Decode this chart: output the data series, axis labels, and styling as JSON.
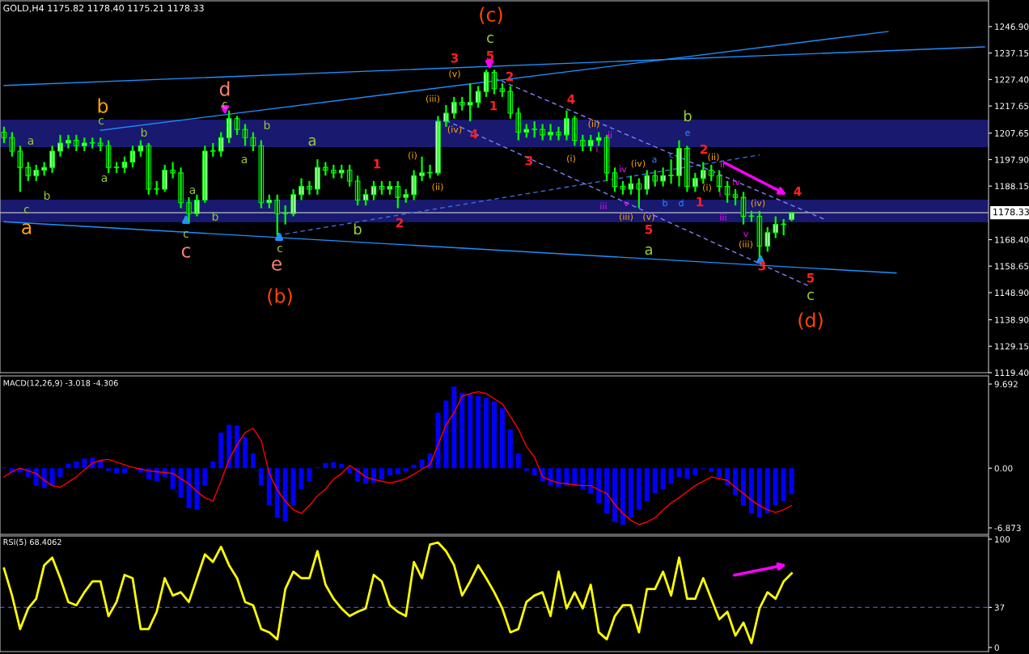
{
  "chart_data": [
    {
      "type": "candlestick",
      "title": "GOLD,H4 1175.82 1178.40 1175.21 1178.33",
      "categories": [
        null,
        null,
        null,
        null,
        null,
        null,
        null,
        null,
        null,
        null,
        null,
        null,
        null,
        null,
        null,
        null,
        null,
        null,
        null,
        null,
        null,
        null,
        null,
        null,
        null,
        null,
        null,
        null,
        null,
        null,
        null,
        null,
        null,
        null,
        null,
        null,
        null,
        null,
        null,
        null,
        null,
        null,
        null,
        null,
        null,
        null,
        null,
        null,
        null,
        null,
        null,
        null,
        null,
        null,
        null,
        null,
        null,
        null,
        null,
        null,
        null,
        null,
        null,
        null,
        null,
        null,
        null,
        null,
        null,
        null,
        null,
        null,
        null,
        null,
        null,
        null,
        null,
        null,
        null,
        null,
        null,
        null,
        null,
        null,
        null,
        null,
        null,
        null,
        null,
        null,
        null,
        null,
        null,
        null,
        null,
        null,
        null,
        null,
        null,
        null,
        null,
        null,
        null,
        null,
        null,
        null,
        null,
        null,
        null,
        null,
        null,
        null,
        null,
        null,
        null,
        null,
        null,
        null,
        null,
        null,
        null,
        null,
        null
      ],
      "ohlc": [
        [
          1208,
          1210,
          1204,
          1206
        ],
        [
          1206,
          1208,
          1199,
          1201
        ],
        [
          1201,
          1203,
          1186,
          1195
        ],
        [
          1195,
          1197,
          1190,
          1192
        ],
        [
          1192,
          1196,
          1190,
          1194
        ],
        [
          1194,
          1197,
          1192,
          1195
        ],
        [
          1195,
          1203,
          1193,
          1201
        ],
        [
          1201,
          1207,
          1199,
          1204
        ],
        [
          1204,
          1207,
          1202,
          1205
        ],
        [
          1205,
          1207,
          1201,
          1203
        ],
        [
          1203,
          1206,
          1201,
          1204
        ],
        [
          1204,
          1206,
          1202,
          1204
        ],
        [
          1204,
          1206,
          1201,
          1203
        ],
        [
          1203,
          1205,
          1193,
          1195
        ],
        [
          1195,
          1197,
          1193,
          1195
        ],
        [
          1195,
          1199,
          1193,
          1197
        ],
        [
          1197,
          1203,
          1195,
          1201
        ],
        [
          1201,
          1205,
          1199,
          1203
        ],
        [
          1203,
          1204,
          1185,
          1187
        ],
        [
          1187,
          1190,
          1185,
          1187
        ],
        [
          1187,
          1196,
          1186,
          1194
        ],
        [
          1194,
          1197,
          1191,
          1193
        ],
        [
          1193,
          1195,
          1180,
          1182
        ],
        [
          1182,
          1184,
          1175,
          1178
        ],
        [
          1178,
          1185,
          1177,
          1183
        ],
        [
          1183,
          1203,
          1182,
          1201
        ],
        [
          1201,
          1204,
          1199,
          1201
        ],
        [
          1201,
          1208,
          1199,
          1206
        ],
        [
          1206,
          1216,
          1204,
          1213
        ],
        [
          1213,
          1214,
          1207,
          1209
        ],
        [
          1209,
          1211,
          1203,
          1206
        ],
        [
          1206,
          1208,
          1201,
          1203
        ],
        [
          1203,
          1205,
          1180,
          1182
        ],
        [
          1182,
          1185,
          1180,
          1183
        ],
        [
          1183,
          1185,
          1170,
          1178
        ],
        [
          1178,
          1181,
          1174,
          1178
        ],
        [
          1178,
          1187,
          1177,
          1185
        ],
        [
          1185,
          1191,
          1183,
          1188
        ],
        [
          1188,
          1190,
          1185,
          1187
        ],
        [
          1187,
          1198,
          1185,
          1195
        ],
        [
          1195,
          1197,
          1192,
          1194
        ],
        [
          1194,
          1196,
          1191,
          1193
        ],
        [
          1193,
          1196,
          1191,
          1194
        ],
        [
          1194,
          1196,
          1188,
          1190
        ],
        [
          1190,
          1192,
          1181,
          1183
        ],
        [
          1183,
          1187,
          1181,
          1185
        ],
        [
          1185,
          1190,
          1183,
          1188
        ],
        [
          1188,
          1190,
          1185,
          1187
        ],
        [
          1187,
          1190,
          1185,
          1188
        ],
        [
          1188,
          1190,
          1180,
          1184
        ],
        [
          1184,
          1187,
          1182,
          1185
        ],
        [
          1185,
          1194,
          1183,
          1192
        ],
        [
          1192,
          1199,
          1190,
          1193
        ],
        [
          1193,
          1196,
          1191,
          1193
        ],
        [
          1193,
          1214,
          1192,
          1212
        ],
        [
          1212,
          1218,
          1210,
          1215
        ],
        [
          1215,
          1221,
          1213,
          1219
        ],
        [
          1219,
          1221,
          1216,
          1218
        ],
        [
          1218,
          1226,
          1212,
          1219
        ],
        [
          1219,
          1225,
          1217,
          1223
        ],
        [
          1223,
          1231,
          1221,
          1230
        ],
        [
          1230,
          1231,
          1222,
          1224
        ],
        [
          1224,
          1226,
          1221,
          1223
        ],
        [
          1223,
          1225,
          1213,
          1215
        ],
        [
          1215,
          1217,
          1205,
          1208
        ],
        [
          1208,
          1211,
          1206,
          1209
        ],
        [
          1209,
          1212,
          1206,
          1209
        ],
        [
          1209,
          1211,
          1205,
          1207
        ],
        [
          1207,
          1211,
          1205,
          1208
        ],
        [
          1208,
          1210,
          1205,
          1207
        ],
        [
          1207,
          1216,
          1205,
          1213
        ],
        [
          1213,
          1214,
          1203,
          1205
        ],
        [
          1205,
          1207,
          1201,
          1203
        ],
        [
          1203,
          1207,
          1201,
          1205
        ],
        [
          1205,
          1208,
          1203,
          1206
        ],
        [
          1206,
          1207,
          1190,
          1193
        ],
        [
          1193,
          1195,
          1186,
          1188
        ],
        [
          1188,
          1190,
          1185,
          1187
        ],
        [
          1187,
          1192,
          1185,
          1189
        ],
        [
          1189,
          1191,
          1180,
          1187
        ],
        [
          1187,
          1194,
          1185,
          1192
        ],
        [
          1192,
          1194,
          1188,
          1190
        ],
        [
          1190,
          1195,
          1188,
          1192
        ],
        [
          1192,
          1198,
          1189,
          1192
        ],
        [
          1192,
          1205,
          1188,
          1202
        ],
        [
          1202,
          1203,
          1186,
          1188
        ],
        [
          1188,
          1193,
          1186,
          1191
        ],
        [
          1191,
          1197,
          1189,
          1194
        ],
        [
          1194,
          1196,
          1190,
          1192
        ],
        [
          1192,
          1194,
          1186,
          1188
        ],
        [
          1188,
          1190,
          1182,
          1185
        ],
        [
          1185,
          1187,
          1181,
          1184
        ],
        [
          1184,
          1186,
          1174,
          1177
        ],
        [
          1177,
          1179,
          1175,
          1177
        ],
        [
          1177,
          1179,
          1162,
          1166
        ],
        [
          1166,
          1173,
          1164,
          1171
        ],
        [
          1171,
          1177,
          1169,
          1174
        ],
        [
          1174,
          1176,
          1170,
          1174
        ],
        [
          1175.82,
          1178.4,
          1175.21,
          1178.33
        ],
        null,
        null,
        null,
        null,
        null,
        null,
        null,
        null,
        null,
        null,
        null,
        null,
        null,
        null,
        null,
        null,
        null,
        null,
        null,
        null,
        null,
        null,
        null,
        null
      ],
      "series": [
        {
          "type": "line",
          "color": "#1e90ff",
          "line_style": "solid",
          "values": [
            1225.2,
            null,
            null,
            null,
            null,
            null,
            null,
            null,
            null,
            null,
            null,
            null,
            null,
            null,
            null,
            null,
            null,
            null,
            null,
            null,
            null,
            null,
            null,
            null,
            null,
            null,
            null,
            null,
            null,
            null,
            null,
            null,
            null,
            null,
            null,
            null,
            null,
            null,
            null,
            null,
            null,
            null,
            null,
            null,
            null,
            null,
            null,
            null,
            null,
            null,
            null,
            null,
            null,
            null,
            null,
            null,
            null,
            null,
            null,
            null,
            null,
            null,
            null,
            null,
            null,
            null,
            null,
            null,
            null,
            null,
            null,
            null,
            null,
            null,
            null,
            null,
            null,
            null,
            null,
            null,
            null,
            null,
            null,
            null,
            null,
            null,
            null,
            null,
            null,
            null,
            null,
            null,
            null,
            null,
            null,
            null,
            null,
            null,
            null,
            null,
            null,
            null,
            null,
            null,
            null,
            null,
            null,
            null,
            null,
            null,
            null,
            null,
            null,
            null,
            null,
            null,
            null,
            null,
            null,
            null,
            null,
            null,
            1239.4
          ]
        },
        {
          "type": "line",
          "color": "#1e90ff",
          "line_style": "solid",
          "values": [
            null,
            null,
            null,
            null,
            null,
            null,
            null,
            null,
            null,
            null,
            null,
            null,
            1208.7,
            null,
            null,
            null,
            null,
            null,
            null,
            null,
            null,
            null,
            null,
            null,
            null,
            null,
            null,
            null,
            null,
            null,
            null,
            null,
            null,
            null,
            null,
            null,
            null,
            null,
            null,
            null,
            null,
            null,
            null,
            null,
            null,
            null,
            null,
            null,
            null,
            null,
            null,
            null,
            null,
            null,
            null,
            null,
            null,
            null,
            null,
            null,
            null,
            null,
            null,
            null,
            null,
            null,
            null,
            null,
            null,
            null,
            null,
            null,
            null,
            null,
            null,
            null,
            null,
            null,
            null,
            null,
            null,
            null,
            null,
            null,
            null,
            null,
            null,
            null,
            null,
            null,
            null,
            null,
            null,
            null,
            null,
            null,
            null,
            null,
            null,
            null,
            null,
            null,
            null,
            null,
            null,
            null,
            null,
            null,
            null,
            null,
            1245.1,
            null,
            null,
            null,
            null,
            null,
            null,
            null,
            null,
            null,
            null,
            null,
            null
          ]
        },
        {
          "type": "line",
          "color": "#1e90ff",
          "line_style": "solid",
          "values": [
            1175.0,
            null,
            null,
            null,
            null,
            null,
            null,
            null,
            null,
            null,
            null,
            null,
            null,
            null,
            null,
            null,
            null,
            null,
            null,
            null,
            null,
            null,
            null,
            null,
            null,
            null,
            null,
            null,
            null,
            null,
            null,
            null,
            null,
            null,
            null,
            null,
            null,
            null,
            null,
            null,
            null,
            null,
            null,
            null,
            null,
            null,
            null,
            null,
            null,
            null,
            null,
            null,
            null,
            null,
            null,
            null,
            null,
            null,
            null,
            null,
            null,
            null,
            null,
            null,
            null,
            null,
            null,
            null,
            null,
            null,
            null,
            null,
            null,
            null,
            null,
            null,
            null,
            null,
            null,
            null,
            null,
            null,
            null,
            null,
            null,
            null,
            null,
            null,
            null,
            null,
            null,
            null,
            null,
            null,
            null,
            null,
            null,
            null,
            null,
            null,
            null,
            null,
            null,
            null,
            null,
            null,
            null,
            null,
            null,
            null,
            null,
            1156.1,
            null,
            null,
            null,
            null,
            null,
            null,
            null,
            null,
            null,
            null,
            null
          ]
        },
        {
          "type": "line",
          "color": "#4169e1",
          "line_style": "dashed",
          "values": [
            null,
            null,
            null,
            null,
            null,
            null,
            null,
            null,
            null,
            null,
            null,
            null,
            null,
            null,
            null,
            null,
            null,
            null,
            null,
            null,
            null,
            null,
            null,
            null,
            null,
            null,
            null,
            null,
            null,
            null,
            null,
            null,
            null,
            null,
            1170.0,
            null,
            null,
            null,
            null,
            null,
            null,
            null,
            null,
            null,
            null,
            null,
            null,
            null,
            null,
            null,
            null,
            null,
            null,
            null,
            null,
            null,
            null,
            null,
            null,
            null,
            null,
            null,
            null,
            null,
            null,
            null,
            null,
            null,
            null,
            null,
            null,
            null,
            null,
            null,
            null,
            null,
            null,
            null,
            null,
            null,
            null,
            null,
            null,
            null,
            null,
            null,
            null,
            null,
            null,
            null,
            null,
            null,
            null,
            null,
            1199.6,
            null,
            null,
            null,
            null,
            null,
            null,
            null,
            null,
            null,
            null,
            null,
            null,
            null,
            null,
            null,
            null,
            null,
            null,
            null,
            null,
            null,
            null,
            null,
            null,
            null,
            null,
            null,
            null
          ]
        },
        {
          "type": "line",
          "color": "#8080ff",
          "line_style": "dashed",
          "values": [
            null,
            null,
            null,
            null,
            null,
            null,
            null,
            null,
            null,
            null,
            null,
            null,
            null,
            null,
            null,
            null,
            null,
            null,
            null,
            null,
            null,
            null,
            null,
            null,
            null,
            null,
            null,
            null,
            null,
            null,
            null,
            null,
            null,
            null,
            null,
            null,
            null,
            null,
            null,
            null,
            null,
            null,
            null,
            null,
            null,
            null,
            null,
            null,
            null,
            null,
            null,
            null,
            null,
            null,
            null,
            null,
            null,
            null,
            null,
            null,
            null,
            1228.0,
            null,
            null,
            null,
            null,
            null,
            null,
            null,
            null,
            null,
            null,
            null,
            null,
            null,
            null,
            null,
            null,
            null,
            null,
            null,
            null,
            null,
            null,
            null,
            null,
            null,
            null,
            null,
            null,
            null,
            null,
            null,
            null,
            null,
            null,
            null,
            null,
            null,
            null,
            null,
            null,
            1176.0,
            null,
            null,
            null,
            null,
            null,
            null,
            null,
            null,
            null,
            null,
            null,
            null,
            null,
            null,
            null,
            null,
            null,
            null,
            null,
            null
          ]
        },
        {
          "type": "line",
          "color": "#8080ff",
          "line_style": "dashed",
          "values": [
            null,
            null,
            null,
            null,
            null,
            null,
            null,
            null,
            null,
            null,
            null,
            null,
            null,
            null,
            null,
            null,
            null,
            null,
            null,
            null,
            null,
            null,
            null,
            null,
            null,
            null,
            null,
            null,
            null,
            null,
            null,
            null,
            null,
            null,
            null,
            null,
            null,
            null,
            null,
            null,
            null,
            null,
            null,
            null,
            null,
            null,
            null,
            null,
            null,
            null,
            null,
            null,
            null,
            null,
            null,
            1212.3,
            null,
            null,
            null,
            null,
            null,
            null,
            null,
            null,
            null,
            null,
            null,
            null,
            null,
            null,
            null,
            null,
            null,
            null,
            null,
            null,
            null,
            null,
            null,
            null,
            null,
            null,
            null,
            null,
            null,
            null,
            null,
            null,
            null,
            null,
            null,
            null,
            null,
            null,
            null,
            null,
            null,
            null,
            null,
            null,
            1151.5,
            null,
            null,
            null,
            null,
            null,
            null,
            null,
            null,
            null,
            null,
            null,
            null,
            null,
            null,
            null,
            null,
            null,
            null,
            null,
            null,
            null,
            null
          ]
        }
      ],
      "bands": [
        {
          "axis": "y",
          "from": 1202.5,
          "to": 1212.6,
          "color": "#191970"
        },
        {
          "axis": "y",
          "from": 1174.8,
          "to": 1183.1,
          "color": "#191970"
        }
      ],
      "ref_lines": [
        {
          "axis": "y",
          "value": 1178.33,
          "label": "1178.33",
          "color": "#c0c0c0"
        }
      ],
      "ylim": [
        1119.4,
        1256.4
      ],
      "yticks": [
        {
          "value": 1246.9,
          "label": "1246.90"
        },
        {
          "value": 1237.15,
          "label": "1237.15"
        },
        {
          "value": 1227.4,
          "label": "1227.40"
        },
        {
          "value": 1217.65,
          "label": "1217.65"
        },
        {
          "value": 1207.65,
          "label": "1207.65"
        },
        {
          "value": 1197.9,
          "label": "1197.90"
        },
        {
          "value": 1188.15,
          "label": "1188.15"
        },
        {
          "value": 1168.4,
          "label": "1168.40"
        },
        {
          "value": 1158.65,
          "label": "1158.65"
        },
        {
          "value": 1148.9,
          "label": "1148.90"
        },
        {
          "value": 1138.9,
          "label": "1138.90"
        },
        {
          "value": 1129.15,
          "label": "1129.15"
        },
        {
          "value": 1119.4,
          "label": "1119.40"
        }
      ],
      "tick_labels": "y",
      "annotations": [
        "a",
        "c",
        "b",
        "a",
        "b",
        "c",
        "a",
        "b",
        "a",
        "b",
        "c",
        "c",
        "d",
        "c",
        "b",
        "a",
        "c",
        "e",
        "(b)",
        "a",
        "b",
        "1",
        "2",
        "(i)",
        "(ii)",
        "(iii)",
        "(iv)",
        "(v)",
        "3",
        "4",
        "(c)",
        "c",
        "5",
        "2",
        "1",
        "3",
        "4",
        "(ii)",
        "ii",
        "i",
        "(i)",
        "iv",
        "(iv)",
        "a",
        "c",
        "iii",
        "v",
        "(iii)",
        "(v)",
        "5",
        "a",
        "b",
        "d",
        "b",
        "e",
        "2",
        "(ii)",
        "(i)",
        "1",
        "ii",
        "i",
        "iv",
        "iii",
        "v",
        "(iv)",
        "(iii)",
        "3",
        "4",
        "5",
        "c",
        "(d)"
      ]
    },
    {
      "type": "bar",
      "title": "MACD(12,26,9) -3.018 -4.306",
      "categories": [
        null,
        null,
        null,
        null,
        null,
        null,
        null,
        null,
        null,
        null,
        null,
        null,
        null,
        null,
        null,
        null,
        null,
        null,
        null,
        null,
        null,
        null,
        null,
        null,
        null,
        null,
        null,
        null,
        null,
        null,
        null,
        null,
        null,
        null,
        null,
        null,
        null,
        null,
        null,
        null,
        null,
        null,
        null,
        null,
        null,
        null,
        null,
        null,
        null,
        null,
        null,
        null,
        null,
        null,
        null,
        null,
        null,
        null,
        null,
        null,
        null,
        null,
        null,
        null,
        null,
        null,
        null,
        null,
        null,
        null,
        null,
        null,
        null,
        null,
        null,
        null,
        null,
        null,
        null,
        null,
        null,
        null,
        null,
        null,
        null,
        null,
        null,
        null,
        null,
        null,
        null,
        null,
        null,
        null,
        null,
        null,
        null,
        null,
        null,
        null,
        null,
        null,
        null,
        null,
        null,
        null,
        null,
        null,
        null,
        null,
        null,
        null,
        null,
        null,
        null,
        null,
        null,
        null,
        null,
        null,
        null,
        null,
        null
      ],
      "series": [
        {
          "type": "bar",
          "color": "#0000ff",
          "values": [
            0.1,
            -0.5,
            -0.5,
            -1.0,
            -2.0,
            -2.3,
            -2.0,
            -1.0,
            0.5,
            0.8,
            1.1,
            1.2,
            0.9,
            -0.3,
            -0.6,
            -0.6,
            null,
            -0.5,
            -1.3,
            -1.5,
            -1.0,
            -2.4,
            -3.4,
            -4.6,
            -4.8,
            -2.0,
            0.8,
            4.1,
            5.0,
            4.9,
            3.6,
            1.7,
            -2.0,
            -4.3,
            -5.7,
            -6.1,
            -4.3,
            -2.4,
            -1.5,
            0.1,
            0.6,
            0.7,
            0.5,
            -0.6,
            -1.5,
            -1.8,
            -1.7,
            -1.3,
            -0.8,
            -0.7,
            -0.4,
            0.4,
            1.0,
            1.7,
            6.4,
            7.8,
            9.4,
            8.7,
            8.5,
            8.3,
            8.1,
            7.7,
            6.9,
            4.5,
            1.7,
            -0.3,
            -0.8,
            -1.5,
            -2.0,
            -2.2,
            -2.0,
            -2.0,
            -2.4,
            -2.9,
            -4.0,
            -5.2,
            -6.2,
            -6.5,
            -5.7,
            -4.8,
            -3.8,
            -2.9,
            -2.4,
            -1.8,
            -1.0,
            -1.2,
            -0.8,
            -0.1,
            -0.4,
            -1.0,
            -2.0,
            -3.1,
            -4.3,
            -5.2,
            -5.7,
            -5.2,
            -4.3,
            -3.8,
            -3.0,
            null,
            null,
            null,
            null,
            null,
            null,
            null,
            null,
            null,
            null,
            null,
            null,
            null,
            null,
            null,
            null,
            null,
            null,
            null,
            null,
            null,
            null,
            null,
            null
          ]
        },
        {
          "type": "line",
          "color": "#ff0000",
          "line_style": "solid",
          "values": [
            -1.0,
            -0.4,
            0,
            -0.3,
            -0.6,
            -1.4,
            -2.0,
            -2.2,
            -1.6,
            -1.0,
            -0.2,
            0.6,
            0.9,
            1.0,
            0.7,
            0.4,
            0.1,
            -0.1,
            -0.3,
            -0.4,
            -0.5,
            -0.6,
            -1.2,
            -1.8,
            -2.7,
            -3.4,
            -3.8,
            -1.5,
            1.0,
            2.7,
            4.1,
            4.6,
            3.2,
            -0.6,
            -2.5,
            -3.8,
            -4.8,
            -5.2,
            -4.3,
            -3.2,
            -2.4,
            -1.3,
            -0.6,
            0.3,
            -0.3,
            -1.0,
            -1.3,
            -1.5,
            -1.7,
            -1.5,
            -1.2,
            -0.7,
            -0.1,
            0.4,
            2.7,
            5.0,
            6.4,
            8.3,
            8.6,
            8.8,
            8.6,
            8.0,
            7.4,
            6.0,
            4.5,
            2.5,
            1.3,
            -1.0,
            -1.4,
            -1.7,
            -1.8,
            -1.9,
            -2.0,
            -2.0,
            -2.5,
            -2.9,
            -4.2,
            -5.2,
            -6.0,
            -6.5,
            -6.2,
            -5.7,
            -4.8,
            -4.0,
            -3.4,
            -2.7,
            -2.0,
            -1.5,
            -1.0,
            -1.2,
            -1.4,
            -2.2,
            -2.9,
            -3.7,
            -4.3,
            -4.8,
            -5.1,
            -4.8,
            -4.3,
            null,
            null,
            null,
            null,
            null,
            null,
            null,
            null,
            null,
            null,
            null,
            null,
            null,
            null,
            null,
            null,
            null,
            null,
            null,
            null,
            null,
            null,
            null,
            null
          ]
        }
      ],
      "ylim": [
        -7.62,
        10.63
      ],
      "yticks": [
        9.692,
        {
          "value": 0,
          "label": "0.00"
        },
        {
          "value": -6.873,
          "label": "-6.873"
        }
      ],
      "tick_labels": "y"
    },
    {
      "type": "line",
      "title": "RSI(5) 68.4062",
      "categories": [
        null,
        null,
        null,
        null,
        null,
        null,
        null,
        null,
        null,
        null,
        null,
        null,
        null,
        null,
        null,
        null,
        null,
        null,
        null,
        null,
        null,
        null,
        null,
        null,
        null,
        null,
        null,
        null,
        null,
        null,
        null,
        null,
        null,
        null,
        null,
        null,
        null,
        null,
        null,
        null,
        null,
        null,
        null,
        null,
        null,
        null,
        null,
        null,
        null,
        null,
        null,
        null,
        null,
        null,
        null,
        null,
        null,
        null,
        null,
        null,
        null,
        null,
        null,
        null,
        null,
        null,
        null,
        null,
        null,
        null,
        null,
        null,
        null,
        null,
        null,
        null,
        null,
        null,
        null,
        null,
        null,
        null,
        null,
        null,
        null,
        null,
        null,
        null,
        null,
        null,
        null,
        null,
        null,
        null,
        null,
        null,
        null,
        null,
        null,
        null,
        null,
        null,
        null,
        null,
        null,
        null,
        null,
        null,
        null,
        null,
        null,
        null,
        null,
        null,
        null,
        null,
        null,
        null,
        null,
        null,
        null,
        null,
        null
      ],
      "series": [
        {
          "color": "#ffff00",
          "line_style": "solid",
          "values": [
            73,
            48,
            17,
            36,
            45,
            76,
            83,
            64,
            42,
            39,
            51,
            61,
            61,
            29,
            42,
            67,
            64,
            17,
            17,
            33,
            64,
            48,
            51,
            42,
            64,
            86,
            79,
            93,
            76,
            64,
            42,
            39,
            17,
            14,
            7.5,
            54,
            70,
            64,
            64,
            89,
            58,
            45,
            36,
            29,
            33,
            36,
            67,
            61,
            39,
            33,
            29,
            79,
            64,
            95,
            97,
            89,
            76,
            48,
            61,
            76,
            64,
            51,
            36,
            14,
            17,
            42,
            48,
            51,
            29,
            70,
            36,
            51,
            36,
            58,
            14,
            7.5,
            29,
            39,
            39,
            14,
            54,
            54,
            70,
            48,
            83,
            45,
            45,
            64,
            45,
            26,
            33,
            11,
            23,
            4,
            36,
            51,
            45,
            61,
            68.4,
            null,
            null,
            null,
            null,
            null,
            null,
            null,
            null,
            null,
            null,
            null,
            null,
            null,
            null,
            null,
            null,
            null,
            null,
            null,
            null,
            null,
            null,
            null,
            null
          ]
        }
      ],
      "ref_lines": [
        {
          "axis": "y",
          "value": 37,
          "color": "#4848ff",
          "line_style": "dashed"
        }
      ],
      "ylim": [
        -3.8,
        103
      ],
      "yticks": [
        100,
        37,
        0
      ],
      "tick_labels": "y"
    }
  ]
}
